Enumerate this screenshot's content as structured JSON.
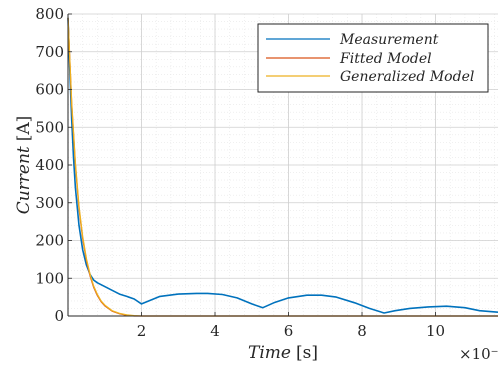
{
  "chart_data": {
    "type": "line",
    "xlabel": "Time [s]",
    "xlabel_parts": {
      "var": "Time",
      "unit": "[s]"
    },
    "ylabel": "Current [A]",
    "ylabel_parts": {
      "var": "Current",
      "unit": "[A]"
    },
    "x_exponent_label": "×10⁻³",
    "xlim": [
      0,
      11.7
    ],
    "ylim": [
      0,
      800
    ],
    "xticks": [
      2,
      4,
      6,
      8,
      10
    ],
    "xtick_labels": [
      "2",
      "4",
      "6",
      "8",
      "10"
    ],
    "yticks": [
      0,
      100,
      200,
      300,
      400,
      500,
      600,
      700,
      800
    ],
    "ytick_labels": [
      "0",
      "100",
      "200",
      "300",
      "400",
      "500",
      "600",
      "700",
      "800"
    ],
    "grid": true,
    "minor_grid": true,
    "legend_position": "top-right",
    "series": [
      {
        "name": "Measurement",
        "color": "#0072BD",
        "x": [
          0,
          0.05,
          0.1,
          0.15,
          0.2,
          0.3,
          0.4,
          0.5,
          0.6,
          0.7,
          0.8,
          0.9,
          1.0,
          1.2,
          1.4,
          1.6,
          1.8,
          2.0,
          2.2,
          2.5,
          3.0,
          3.5,
          3.8,
          4.2,
          4.6,
          5.0,
          5.3,
          5.6,
          6.0,
          6.5,
          6.9,
          7.3,
          7.8,
          8.2,
          8.6,
          8.9,
          9.3,
          9.8,
          10.3,
          10.8,
          11.2,
          11.7
        ],
        "y": [
          790,
          650,
          520,
          420,
          340,
          240,
          175,
          135,
          110,
          95,
          88,
          83,
          78,
          68,
          58,
          52,
          45,
          32,
          40,
          52,
          58,
          60,
          60,
          57,
          48,
          32,
          22,
          35,
          48,
          55,
          55,
          50,
          35,
          20,
          8,
          14,
          20,
          24,
          26,
          22,
          14,
          10
        ]
      },
      {
        "name": "Fitted Model",
        "color": "#D95319",
        "x": [
          0,
          0.1,
          0.2,
          0.3,
          0.4,
          0.5,
          0.6,
          0.7,
          0.8,
          0.9,
          1.0,
          1.2,
          1.4,
          1.6,
          1.8,
          2.0,
          11.7
        ],
        "y": [
          790,
          560,
          400,
          285,
          205,
          148,
          106,
          76,
          54,
          38,
          27,
          13,
          6,
          2,
          0,
          0,
          0
        ]
      },
      {
        "name": "Generalized Model",
        "color": "#EDB120",
        "x": [
          0,
          0.1,
          0.2,
          0.3,
          0.4,
          0.5,
          0.6,
          0.7,
          0.8,
          0.9,
          1.0,
          1.2,
          1.4,
          1.6,
          1.8,
          2.0,
          11.7
        ],
        "y": [
          790,
          565,
          405,
          290,
          210,
          152,
          110,
          79,
          57,
          40,
          29,
          14,
          7,
          3,
          1,
          0,
          0
        ]
      }
    ]
  }
}
